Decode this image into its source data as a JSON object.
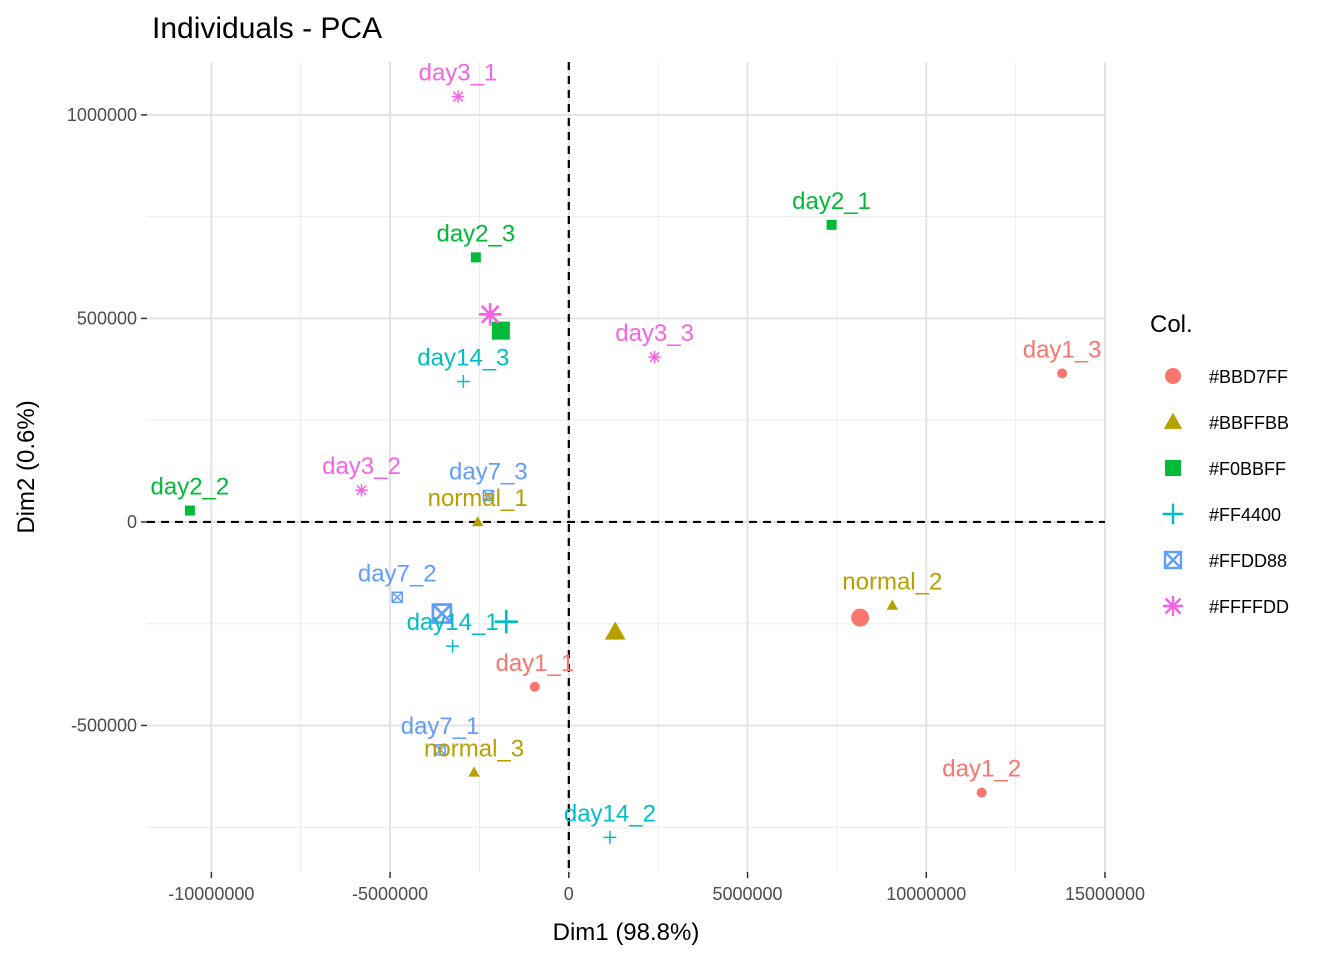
{
  "chart_data": {
    "type": "scatter",
    "title": "Individuals - PCA",
    "xlabel": "Dim1 (98.8%)",
    "ylabel": "Dim2 (0.6%)",
    "xlim": [
      -11800000,
      15000000
    ],
    "ylim": [
      -860000,
      1130000
    ],
    "x_ticks": [
      -10000000,
      -5000000,
      0,
      5000000,
      10000000,
      15000000
    ],
    "x_tick_labels": [
      "-10000000",
      "-5000000",
      "0",
      "5000000",
      "10000000",
      "15000000"
    ],
    "y_ticks": [
      -500000,
      0,
      500000,
      1000000
    ],
    "y_tick_labels": [
      "-500000",
      "0",
      "500000",
      "1000000"
    ],
    "grid": true,
    "reference_lines": {
      "x": 0,
      "y": 0,
      "style": "dashed"
    },
    "legend": {
      "title": "Col.",
      "position": "right",
      "entries": [
        {
          "label": "#BBD7FF",
          "shape": "circle",
          "color": "#F8766D"
        },
        {
          "label": "#BBFFBB",
          "shape": "triangle",
          "color": "#B79F00"
        },
        {
          "label": "#F0BBFF",
          "shape": "square",
          "color": "#00BA38"
        },
        {
          "label": "#FF4400",
          "shape": "plus",
          "color": "#00BFC4"
        },
        {
          "label": "#FFDD88",
          "shape": "square-x",
          "color": "#619CFF"
        },
        {
          "label": "#FFFFDD",
          "shape": "asterisk",
          "color": "#F564E3"
        }
      ]
    },
    "series": [
      {
        "name": "#BBD7FF",
        "shape": "circle",
        "color": "#F8766D",
        "points": [
          {
            "label": "day1_1",
            "x": -950000,
            "y": -405000
          },
          {
            "label": "day1_2",
            "x": 11550000,
            "y": -665000
          },
          {
            "label": "day1_3",
            "x": 13800000,
            "y": 365000
          }
        ],
        "centroid": {
          "x": 8150000,
          "y": -235000
        }
      },
      {
        "name": "#BBFFBB",
        "shape": "triangle",
        "color": "#B79F00",
        "points": [
          {
            "label": "normal_1",
            "x": -2550000,
            "y": 0
          },
          {
            "label": "normal_2",
            "x": 9050000,
            "y": -205000
          },
          {
            "label": "normal_3",
            "x": -2650000,
            "y": -615000
          }
        ],
        "centroid": {
          "x": 1300000,
          "y": -270000
        }
      },
      {
        "name": "#F0BBFF",
        "shape": "square",
        "color": "#00BA38",
        "points": [
          {
            "label": "day2_1",
            "x": 7350000,
            "y": 730000
          },
          {
            "label": "day2_2",
            "x": -10600000,
            "y": 28000
          },
          {
            "label": "day2_3",
            "x": -2600000,
            "y": 650000
          }
        ],
        "centroid": {
          "x": -1900000,
          "y": 470000
        }
      },
      {
        "name": "#FF4400",
        "shape": "plus",
        "color": "#00BFC4",
        "points": [
          {
            "label": "day14_1",
            "x": -3250000,
            "y": -305000
          },
          {
            "label": "day14_2",
            "x": 1150000,
            "y": -775000
          },
          {
            "label": "day14_3",
            "x": -2950000,
            "y": 345000
          }
        ],
        "centroid": {
          "x": -1750000,
          "y": -245000
        }
      },
      {
        "name": "#FFDD88",
        "shape": "square-x",
        "color": "#619CFF",
        "points": [
          {
            "label": "day7_1",
            "x": -3600000,
            "y": -560000
          },
          {
            "label": "day7_2",
            "x": -4800000,
            "y": -185000
          },
          {
            "label": "day7_3",
            "x": -2250000,
            "y": 65000
          }
        ],
        "centroid": {
          "x": -3550000,
          "y": -225000
        }
      },
      {
        "name": "#FFFFDD",
        "shape": "asterisk",
        "color": "#F564E3",
        "points": [
          {
            "label": "day3_1",
            "x": -3100000,
            "y": 1045000
          },
          {
            "label": "day3_2",
            "x": -5800000,
            "y": 78000
          },
          {
            "label": "day3_3",
            "x": 2400000,
            "y": 405000
          }
        ],
        "centroid": {
          "x": -2200000,
          "y": 510000
        }
      }
    ]
  }
}
